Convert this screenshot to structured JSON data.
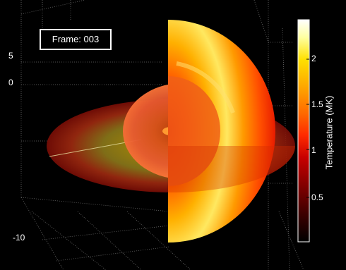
{
  "frame_label": "Frame: 003",
  "axis_ticks": [
    "5",
    "0",
    "-10"
  ],
  "colorbar": {
    "title": "Temperature (MK)",
    "ticks": [
      "2",
      "1.5",
      "1",
      "0.5"
    ],
    "tick_values": [
      2,
      1.5,
      1,
      0.5
    ],
    "range": [
      0,
      2.35
    ],
    "colormap": [
      "#000000",
      "#3a0000",
      "#800000",
      "#c80000",
      "#ff2a00",
      "#ff6a00",
      "#ffa800",
      "#ffe000",
      "#ffffa0",
      "#ffffff"
    ]
  },
  "chart_data": {
    "type": "volume-slice",
    "quantity": "Temperature (MK)",
    "color_range": [
      0,
      2.35
    ],
    "colorbar_ticks": [
      0.5,
      1,
      1.5,
      2
    ],
    "axis_tick_labels": [
      "5",
      "0",
      "-10"
    ],
    "grid": true,
    "frame": "003",
    "background": "#000000"
  }
}
